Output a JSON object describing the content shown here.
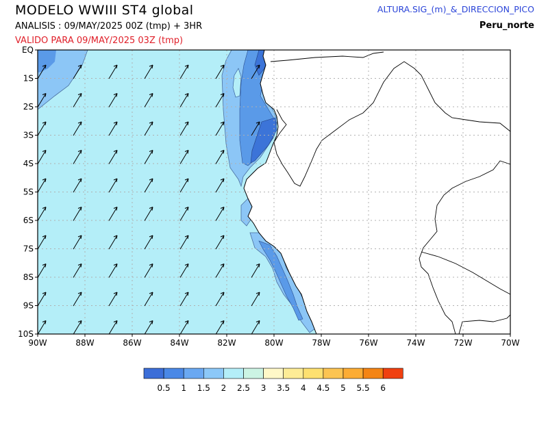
{
  "header": {
    "model_title": "MODELO  WWIII  ST4  global",
    "analysis_line": "ANALISIS : 09/MAY/2025 00Z  (tmp) + 3HR",
    "valid_line": "VALIDO PARA  09/MAY/2025 03Z  (tmp)",
    "variable": "ALTURA.SIG_(m)_&_DIRECCION_PICO",
    "region": "Peru_norte"
  },
  "map": {
    "lat_labels": [
      "EQ",
      "1S",
      "2S",
      "3S",
      "4S",
      "5S",
      "6S",
      "7S",
      "8S",
      "9S",
      "10S"
    ],
    "lon_labels": [
      "90W",
      "88W",
      "86W",
      "84W",
      "82W",
      "80W",
      "78W",
      "76W",
      "74W",
      "72W",
      "70W"
    ],
    "lon_range_deg": [
      -90,
      -70
    ],
    "lat_range_deg": [
      0,
      -10
    ],
    "gridlines": true,
    "wave_direction_arrows": "toward north-east",
    "colors": {
      "ocean_base": "#b4eef8",
      "contour_1_5": "#8cc6f6",
      "contour_1": "#5a9ae8",
      "contour_0_5": "#3c74d8",
      "land": "#ffffff",
      "coast": "#000000",
      "grid": "#b0b0b0"
    }
  },
  "colorbar": {
    "levels": [
      "0.5",
      "1",
      "1.5",
      "2",
      "2.5",
      "3",
      "3.5",
      "4",
      "4.5",
      "5",
      "5.5",
      "6"
    ],
    "colors": [
      "#3c6ed8",
      "#4a88e6",
      "#6aa8f2",
      "#8cc8f8",
      "#b4eef8",
      "#ccf4e4",
      "#fff8c8",
      "#fdec96",
      "#fde070",
      "#fcc452",
      "#fcac34",
      "#f48414",
      "#f04010"
    ]
  }
}
